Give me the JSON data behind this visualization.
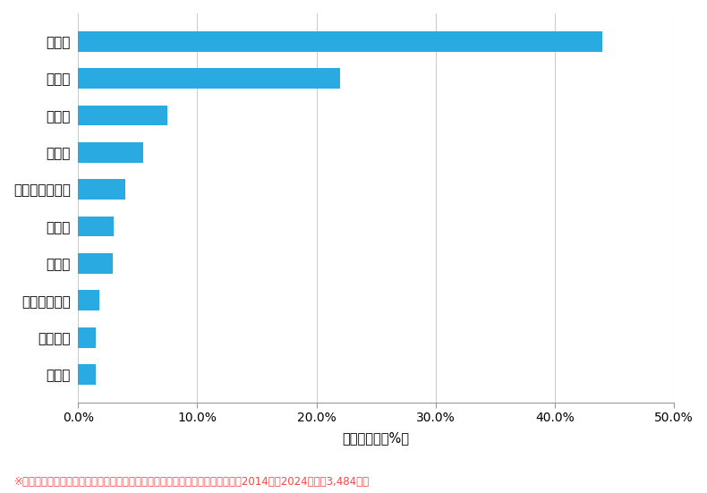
{
  "categories": [
    "宮崎市",
    "都城市",
    "延岡市",
    "日向市",
    "北諸県郡三股町",
    "日南市",
    "小林市",
    "児湯郡高鍋町",
    "えびの市",
    "西都市"
  ],
  "values": [
    44.0,
    22.0,
    7.5,
    5.5,
    4.0,
    3.0,
    2.9,
    1.8,
    1.5,
    1.5
  ],
  "bar_color": "#29ABE2",
  "xlabel": "件数の割合（%）",
  "xlim": [
    0,
    50
  ],
  "xticks": [
    0,
    10,
    20,
    30,
    40,
    50
  ],
  "xticklabels": [
    "0.0%",
    "10.0%",
    "20.0%",
    "30.0%",
    "40.0%",
    "50.0%"
  ],
  "footnote": "※弊社受付の案件を対象に、受付時に市区町村の回答があったものを集計（期間2014年～2024年、計3,484件）",
  "footnote_color": "#FF4444",
  "grid_color": "#CCCCCC",
  "background_color": "#FFFFFF",
  "bar_height": 0.55
}
